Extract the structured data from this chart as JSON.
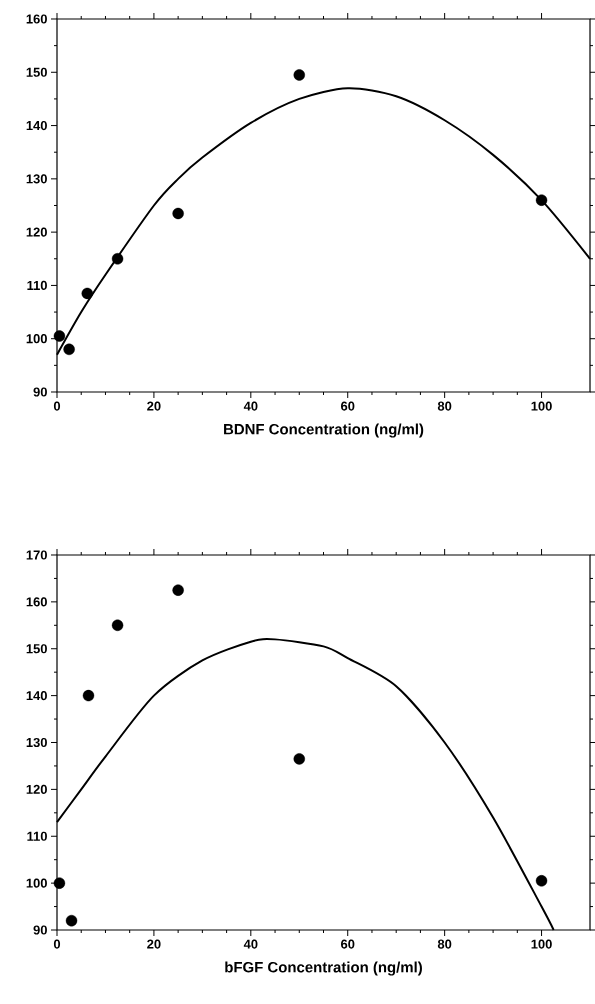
{
  "chart_data": [
    {
      "type": "scatter",
      "xlabel": "BDNF Concentration (ng/ml)",
      "xlim": [
        0,
        110
      ],
      "ylim": [
        90,
        160
      ],
      "xticks": [
        0,
        20,
        40,
        60,
        80,
        100
      ],
      "yticks": [
        90,
        100,
        110,
        120,
        130,
        140,
        150,
        160
      ],
      "series": [
        {
          "marker": "circle",
          "color": "#000000",
          "x": [
            0.5,
            2.5,
            6.25,
            12.5,
            25,
            50,
            100
          ],
          "values": [
            100.5,
            98,
            108.5,
            115,
            123.5,
            149.5,
            126
          ]
        },
        {
          "type": "line",
          "marker": "none",
          "color": "#000000",
          "x": [
            0,
            5,
            10,
            20,
            25,
            30,
            40,
            50,
            60,
            70,
            80,
            90,
            100,
            110
          ],
          "values": [
            97,
            105,
            112,
            125,
            130,
            134,
            140.5,
            145,
            147,
            145.5,
            141,
            134.5,
            126,
            115
          ]
        }
      ]
    },
    {
      "type": "scatter",
      "xlabel": "bFGF Concentration (ng/ml)",
      "xlim": [
        0,
        110
      ],
      "ylim": [
        90,
        170
      ],
      "xticks": [
        0,
        20,
        40,
        60,
        80,
        100
      ],
      "yticks": [
        90,
        100,
        110,
        120,
        130,
        140,
        150,
        160,
        170
      ],
      "series": [
        {
          "marker": "circle",
          "color": "#000000",
          "x": [
            0.5,
            3,
            6.5,
            12.5,
            25,
            50,
            100
          ],
          "values": [
            100,
            92,
            140,
            155,
            162.5,
            126.5,
            100.5
          ]
        },
        {
          "type": "line",
          "marker": "none",
          "color": "#000000",
          "x": [
            0,
            5,
            10,
            20,
            30,
            40,
            45,
            55,
            60,
            70,
            80,
            90,
            100,
            102.5
          ],
          "values": [
            113,
            120,
            127,
            140,
            147.5,
            151.5,
            152,
            150.5,
            148,
            142,
            130,
            114,
            95,
            90
          ]
        }
      ]
    }
  ]
}
